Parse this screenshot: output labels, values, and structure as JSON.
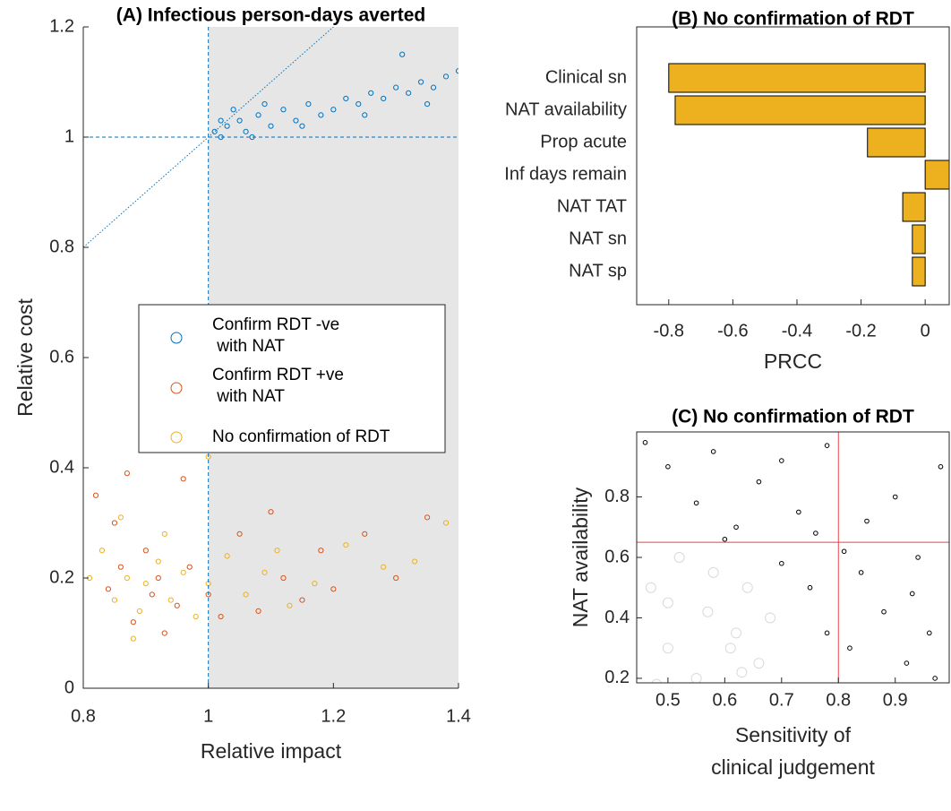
{
  "chart_data": [
    {
      "type": "scatter",
      "title": "(A) Infectious person-days averted",
      "xlabel": "Relative impact",
      "ylabel": "Relative cost",
      "xlim": [
        0.8,
        1.4
      ],
      "ylim": [
        0,
        1.2
      ],
      "xticks": [
        0.8,
        1,
        1.2,
        1.4
      ],
      "yticks": [
        0,
        0.2,
        0.4,
        0.6,
        0.8,
        1,
        1.2
      ],
      "shade_x": [
        1,
        1.4
      ],
      "vline": 1,
      "hline": 1,
      "diagonal": true,
      "legend": "center",
      "series": [
        {
          "name": "Confirm RDT -ve\n with NAT",
          "color": "#0072bd",
          "x": [
            1.01,
            1.02,
            1.03,
            1.05,
            1.06,
            1.08,
            1.1,
            1.12,
            1.14,
            1.16,
            1.18,
            1.2,
            1.22,
            1.24,
            1.26,
            1.28,
            1.3,
            1.32,
            1.34,
            1.36,
            1.38,
            1.4,
            1.31,
            1.04,
            1.09,
            1.15,
            1.25,
            1.35,
            1.02,
            1.07
          ],
          "values": [
            1.01,
            1.0,
            1.02,
            1.03,
            1.01,
            1.04,
            1.02,
            1.05,
            1.03,
            1.06,
            1.04,
            1.05,
            1.07,
            1.06,
            1.08,
            1.07,
            1.09,
            1.08,
            1.1,
            1.09,
            1.11,
            1.12,
            1.15,
            1.05,
            1.06,
            1.02,
            1.04,
            1.06,
            1.03,
            1.0
          ]
        },
        {
          "name": "Confirm RDT +ve\n with NAT",
          "color": "#d95319",
          "x": [
            0.82,
            0.85,
            0.87,
            0.9,
            0.92,
            0.95,
            0.88,
            0.84,
            0.97,
            1.0,
            1.05,
            1.1,
            1.12,
            1.18,
            1.25,
            1.3,
            1.35,
            0.93,
            0.86,
            1.08,
            1.15,
            1.2,
            0.96,
            1.02,
            0.91
          ],
          "values": [
            0.35,
            0.3,
            0.39,
            0.25,
            0.2,
            0.15,
            0.12,
            0.18,
            0.22,
            0.17,
            0.28,
            0.32,
            0.2,
            0.25,
            0.28,
            0.2,
            0.31,
            0.1,
            0.22,
            0.14,
            0.16,
            0.18,
            0.38,
            0.13,
            0.17
          ]
        },
        {
          "name": "No confirmation of RDT",
          "color": "#edb120",
          "x": [
            0.81,
            0.83,
            0.85,
            0.87,
            0.89,
            0.9,
            0.92,
            0.94,
            0.96,
            0.98,
            1.0,
            1.03,
            1.06,
            1.09,
            1.13,
            1.17,
            1.22,
            1.28,
            1.33,
            1.38,
            0.88,
            0.93,
            1.0,
            0.86,
            1.11
          ],
          "values": [
            0.2,
            0.25,
            0.16,
            0.2,
            0.14,
            0.19,
            0.23,
            0.16,
            0.21,
            0.13,
            0.19,
            0.24,
            0.17,
            0.21,
            0.15,
            0.19,
            0.26,
            0.22,
            0.23,
            0.3,
            0.09,
            0.28,
            0.42,
            0.31,
            0.25
          ]
        }
      ]
    },
    {
      "type": "hbar",
      "title": "(B) No confirmation of RDT",
      "xlabel": "PRCC",
      "categories": [
        "Clinical sn",
        "NAT availability",
        "Prop acute",
        "Inf days remain",
        "NAT TAT",
        "NAT sn",
        "NAT sp"
      ],
      "values": [
        -0.8,
        -0.78,
        -0.18,
        0.1,
        -0.07,
        -0.04,
        -0.04
      ],
      "color": "#edb120",
      "xlim": [
        -0.9,
        0.075
      ],
      "xticks": [
        -0.8,
        -0.6,
        -0.4,
        -0.2,
        0
      ]
    },
    {
      "type": "scatter",
      "title": "(C) No confirmation of RDT",
      "xlabel": "Sensitivity of\nclinical judgement",
      "ylabel": "NAT availability",
      "xlim": [
        0.445,
        0.995
      ],
      "ylim": [
        0.185,
        1.015
      ],
      "xticks": [
        0.5,
        0.6,
        0.7,
        0.8,
        0.9
      ],
      "yticks": [
        0.2,
        0.4,
        0.6,
        0.8
      ],
      "vline": 0.8,
      "hline": 0.65,
      "line_color": "#e8424a",
      "series": [
        {
          "color": "#d9d9d9",
          "x": [
            0.47,
            0.5,
            0.52,
            0.55,
            0.57,
            0.6,
            0.62,
            0.64,
            0.66,
            0.5,
            0.54,
            0.58,
            0.63,
            0.68,
            0.48,
            0.61
          ],
          "values": [
            0.5,
            0.3,
            0.6,
            0.2,
            0.42,
            0.15,
            0.35,
            0.5,
            0.25,
            0.45,
            0.12,
            0.55,
            0.22,
            0.4,
            0.18,
            0.3
          ]
        },
        {
          "color": "#000000",
          "x": [
            0.46,
            0.5,
            0.55,
            0.58,
            0.62,
            0.66,
            0.7,
            0.73,
            0.76,
            0.78,
            0.82,
            0.84,
            0.86,
            0.88,
            0.9,
            0.92,
            0.94,
            0.96,
            0.98,
            0.99,
            0.85,
            0.93,
            0.81,
            0.97,
            0.6,
            0.75,
            0.7,
            0.78
          ],
          "values": [
            0.98,
            0.9,
            0.78,
            0.95,
            0.7,
            0.85,
            0.92,
            0.75,
            0.68,
            0.97,
            0.3,
            0.55,
            0.15,
            0.42,
            0.8,
            0.25,
            0.6,
            0.35,
            0.9,
            0.12,
            0.72,
            0.48,
            0.62,
            0.2,
            0.66,
            0.5,
            0.58,
            0.35
          ]
        }
      ]
    }
  ]
}
